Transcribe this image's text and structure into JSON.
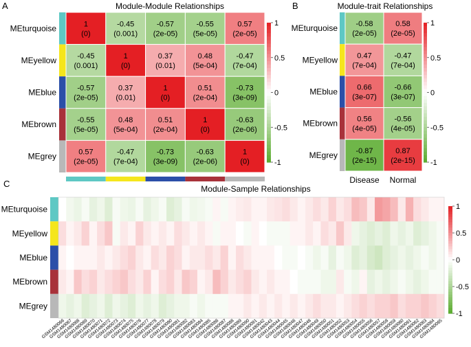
{
  "panels": {
    "A": {
      "letter": "A",
      "title": "Module-Module Relationships",
      "rows": [
        "MEturquoise",
        "MEyellow",
        "MEblue",
        "MEbrown",
        "MEgrey"
      ],
      "values": [
        [
          1,
          -0.45,
          -0.57,
          -0.55,
          0.57
        ],
        [
          -0.45,
          1,
          0.37,
          0.48,
          -0.47
        ],
        [
          -0.57,
          0.37,
          1,
          0.51,
          -0.73
        ],
        [
          -0.55,
          0.48,
          0.51,
          1,
          -0.63
        ],
        [
          0.57,
          -0.47,
          -0.73,
          -0.63,
          1
        ]
      ],
      "pvalues": [
        [
          "(0)",
          "(0.001)",
          "(2e-05)",
          "(5e-05)",
          "(2e-05)"
        ],
        [
          "(0.001)",
          "(0)",
          "(0.01)",
          "(5e-04)",
          "(7e-04)"
        ],
        [
          "(2e-05)",
          "(0.01)",
          "(0)",
          "(2e-04)",
          "(3e-09)"
        ],
        [
          "(5e-05)",
          "(5e-04)",
          "(2e-04)",
          "(0)",
          "(2e-06)"
        ],
        [
          "(2e-05)",
          "(7e-04)",
          "(3e-09)",
          "(2e-06)",
          "(0)"
        ]
      ],
      "legend_ticks": [
        "1",
        "0.5",
        "0",
        "-0.5",
        "-1"
      ]
    },
    "B": {
      "letter": "B",
      "title": "Module-trait Relationships",
      "rows": [
        "MEturquoise",
        "MEyellow",
        "MEblue",
        "MEbrown",
        "MEgrey"
      ],
      "columns": [
        "Disease",
        "Normal"
      ],
      "values": [
        [
          -0.58,
          0.58
        ],
        [
          0.47,
          -0.47
        ],
        [
          0.66,
          -0.66
        ],
        [
          0.56,
          -0.56
        ],
        [
          -0.87,
          0.87
        ]
      ],
      "pvalues": [
        [
          "(2e-05)",
          "(2e-05)"
        ],
        [
          "(7e-04)",
          "(7e-04)"
        ],
        [
          "(3e-07)",
          "(3e-07)"
        ],
        [
          "(4e-05)",
          "(4e-05)"
        ],
        [
          "(2e-15)",
          "(2e-15)"
        ]
      ],
      "legend_ticks": [
        "1",
        "0.5",
        "0",
        "-0.5",
        "-1"
      ]
    },
    "C": {
      "letter": "C",
      "title": "Module-Sample Relationships",
      "rows": [
        "MEturquoise",
        "MEyellow",
        "MEblue",
        "MEbrown",
        "MEgrey"
      ],
      "legend_ticks": [
        "1",
        "0.5",
        "0",
        "-0.5",
        "-1"
      ]
    }
  },
  "module_colors": [
    "#5ec8c4",
    "#f5e61c",
    "#2b4fa8",
    "#a8323a",
    "#b8b8b8"
  ],
  "color_scale": {
    "negative": "#5aab2e",
    "zero": "#ffffff",
    "positive": "#e41f24"
  },
  "chart_data": [
    {
      "type": "heatmap",
      "title": "Module-Module Relationships",
      "rows": [
        "MEturquoise",
        "MEyellow",
        "MEblue",
        "MEbrown",
        "MEgrey"
      ],
      "columns": [
        "MEturquoise",
        "MEyellow",
        "MEblue",
        "MEbrown",
        "MEgrey"
      ],
      "values": [
        [
          1,
          -0.45,
          -0.57,
          -0.55,
          0.57
        ],
        [
          -0.45,
          1,
          0.37,
          0.48,
          -0.47
        ],
        [
          -0.57,
          0.37,
          1,
          0.51,
          -0.73
        ],
        [
          -0.55,
          0.48,
          0.51,
          1,
          -0.63
        ],
        [
          0.57,
          -0.47,
          -0.73,
          -0.63,
          1
        ]
      ],
      "color_range": [
        -1,
        1
      ]
    },
    {
      "type": "heatmap",
      "title": "Module-trait Relationships",
      "rows": [
        "MEturquoise",
        "MEyellow",
        "MEblue",
        "MEbrown",
        "MEgrey"
      ],
      "columns": [
        "Disease",
        "Normal"
      ],
      "values": [
        [
          -0.58,
          0.58
        ],
        [
          0.47,
          -0.47
        ],
        [
          0.66,
          -0.66
        ],
        [
          0.56,
          -0.56
        ],
        [
          -0.87,
          0.87
        ]
      ],
      "color_range": [
        -1,
        1
      ]
    },
    {
      "type": "heatmap",
      "title": "Module-Sample Relationships",
      "rows": [
        "MEturquoise",
        "MEyellow",
        "MEblue",
        "MEbrown",
        "MEgrey"
      ],
      "columns": [
        "GSM1480066",
        "GSM1480067",
        "GSM1480068",
        "GSM1480069",
        "GSM1480070",
        "GSM1480071",
        "GSM1480072",
        "GSM1480073",
        "GSM1480074",
        "GSM1480075",
        "GSM1480076",
        "GSM1480077",
        "GSM1480078",
        "GSM1480079",
        "GSM1480080",
        "GSM1480081",
        "GSM1480082",
        "GSM1480083",
        "GSM1480084",
        "GSM1480085",
        "GSM1480086",
        "GSM1480087",
        "GSM1480088",
        "GSM1480089",
        "GSM1480090",
        "GSM1480091",
        "GSM1480042",
        "GSM1480043",
        "GSM1480044",
        "GSM1480045",
        "GSM1480046",
        "GSM1480047",
        "GSM1480048",
        "GSM1480049",
        "GSM1480050",
        "GSM1480051",
        "GSM1480052",
        "GSM1480053",
        "GSM1480054",
        "GSM1480055",
        "GSM1480056",
        "GSM1480057",
        "GSM1480058",
        "GSM1480059",
        "GSM1480060",
        "GSM1480061",
        "GSM1480062",
        "GSM1480063",
        "GSM1480064",
        "GSM1480065"
      ],
      "values": [
        [
          0,
          -0.08,
          -0.12,
          -0.05,
          -0.15,
          -0.1,
          -0.2,
          -0.05,
          -0.1,
          -0.12,
          -0.05,
          -0.15,
          -0.1,
          -0.05,
          -0.2,
          -0.15,
          -0.05,
          -0.1,
          -0.08,
          -0.05,
          0.05,
          -0.05,
          0.05,
          0.08,
          0.1,
          0.05,
          0.05,
          0.1,
          0.12,
          0.15,
          0.1,
          0.05,
          0.1,
          0.15,
          0.1,
          0.2,
          0.1,
          0.15,
          0.3,
          0.25,
          0.1,
          0.45,
          0.4,
          0.3,
          0.1,
          0.35,
          0.15,
          0.1,
          0.05,
          0.05
        ],
        [
          0.15,
          0.05,
          0.1,
          0.2,
          0.05,
          0.15,
          0.25,
          -0.05,
          0.1,
          0.05,
          0.2,
          0.1,
          0.05,
          0.1,
          0.05,
          0.15,
          0.1,
          0.05,
          0.1,
          0.05,
          -0.05,
          0.05,
          0.05,
          0,
          -0.05,
          0.05,
          0,
          -0.05,
          -0.05,
          -0.05,
          0.05,
          0.05,
          0.1,
          0.05,
          0.15,
          0.1,
          0.25,
          0.1,
          -0.1,
          -0.15,
          -0.2,
          -0.15,
          -0.2,
          -0.1,
          -0.15,
          -0.1,
          -0.2,
          -0.15,
          -0.1,
          -0.05
        ],
        [
          0.05,
          0,
          0.05,
          0.05,
          0.05,
          0.1,
          0.05,
          0.1,
          0.15,
          0.2,
          0.1,
          0.05,
          0.15,
          0.1,
          0.2,
          0.15,
          0.05,
          0.1,
          0.1,
          0.15,
          0.1,
          0.2,
          0.05,
          0.15,
          0.1,
          0.05,
          0.05,
          0.05,
          0,
          -0.05,
          -0.05,
          0,
          -0.05,
          -0.1,
          -0.05,
          -0.15,
          -0.05,
          -0.1,
          -0.2,
          -0.15,
          -0.25,
          -0.3,
          -0.2,
          -0.15,
          -0.1,
          -0.15,
          -0.1,
          -0.05,
          -0.1,
          -0.05
        ],
        [
          0.1,
          0.05,
          0.25,
          0.15,
          0.2,
          0.1,
          0.15,
          0.2,
          0.25,
          0.15,
          0.1,
          0.2,
          0.05,
          0.15,
          0.2,
          0.1,
          0.25,
          0.2,
          0.05,
          0.1,
          0.3,
          0.2,
          0.1,
          0.15,
          0.2,
          0.1,
          0.05,
          0.1,
          0.05,
          0.05,
          0,
          -0.05,
          -0.05,
          -0.05,
          -0.1,
          -0.1,
          0.1,
          -0.05,
          -0.1,
          0.05,
          -0.15,
          -0.1,
          -0.15,
          -0.1,
          -0.05,
          -0.1,
          -0.15,
          -0.1,
          -0.05,
          -0.05
        ],
        [
          -0.1,
          -0.15,
          -0.1,
          -0.2,
          -0.15,
          -0.1,
          -0.2,
          -0.1,
          -0.15,
          -0.2,
          -0.1,
          -0.15,
          -0.1,
          -0.2,
          -0.15,
          -0.1,
          -0.1,
          -0.05,
          -0.1,
          -0.05,
          -0.05,
          -0.05,
          0.05,
          0.05,
          0.1,
          0.05,
          0.1,
          0.05,
          0.1,
          0.05,
          0.1,
          0.05,
          0.1,
          0.15,
          0.1,
          0.1,
          0.05,
          0.1,
          0.15,
          0.2,
          0.15,
          0.2,
          0.2,
          0.25,
          0.15,
          0.2,
          0.2,
          0.25,
          0.2,
          0.15
        ]
      ],
      "color_range": [
        -1,
        1
      ]
    }
  ]
}
